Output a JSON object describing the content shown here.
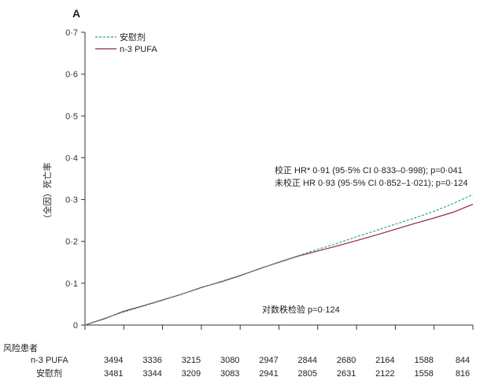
{
  "chart_data": {
    "type": "line",
    "panel_label": "A",
    "title": "",
    "xlabel": "",
    "ylabel": "（全因）死亡率",
    "ylim": [
      0,
      0.7
    ],
    "yticks": [
      0,
      0.1,
      0.2,
      0.3,
      0.4,
      0.5,
      0.6,
      0.7
    ],
    "ytick_labels": [
      "0",
      "0·1",
      "0·2",
      "0·3",
      "0·4",
      "0·5",
      "0·6",
      "0·7"
    ],
    "xlim": [
      0,
      10
    ],
    "grid": false,
    "legend_position": "top-left",
    "series": [
      {
        "name": "安慰剂",
        "style": "dashed",
        "color": "#2aa58a",
        "x": [
          0,
          0.5,
          1,
          1.5,
          2,
          2.5,
          3,
          3.5,
          4,
          4.5,
          5,
          5.5,
          6,
          6.5,
          7,
          7.5,
          8,
          8.5,
          9,
          9.5,
          10
        ],
        "y": [
          0,
          0.016,
          0.031,
          0.045,
          0.059,
          0.074,
          0.089,
          0.104,
          0.119,
          0.134,
          0.151,
          0.166,
          0.181,
          0.195,
          0.211,
          0.226,
          0.241,
          0.256,
          0.272,
          0.291,
          0.312
        ]
      },
      {
        "name": "n-3 PUFA",
        "style": "solid",
        "color": "#8c2a36",
        "x": [
          0,
          0.5,
          1,
          1.5,
          2,
          2.5,
          3,
          3.5,
          4,
          4.5,
          5,
          5.5,
          6,
          6.5,
          7,
          7.5,
          8,
          8.5,
          9,
          9.5,
          10
        ],
        "y": [
          0,
          0.015,
          0.033,
          0.046,
          0.06,
          0.074,
          0.09,
          0.103,
          0.118,
          0.135,
          0.15,
          0.165,
          0.177,
          0.189,
          0.202,
          0.215,
          0.229,
          0.243,
          0.256,
          0.27,
          0.289
        ]
      }
    ],
    "annotations": [
      "校正  HR* 0·91 (95·5% CI 0·833–0·998); p=0·041",
      "未校正 HR 0·93 (95·5% CI 0·852–1·021); p=0·124",
      "对数秩检验  p=0·124"
    ],
    "risk_table": {
      "title": "风险患者",
      "rows": [
        {
          "label": "n-3 PUFA",
          "values": [
            "3494",
            "3336",
            "3215",
            "3080",
            "2947",
            "2844",
            "2680",
            "2164",
            "1588",
            "844"
          ]
        },
        {
          "label": "安慰剂",
          "values": [
            "3481",
            "3344",
            "3209",
            "3083",
            "2941",
            "2805",
            "2631",
            "2122",
            "1558",
            "816"
          ]
        }
      ]
    }
  }
}
